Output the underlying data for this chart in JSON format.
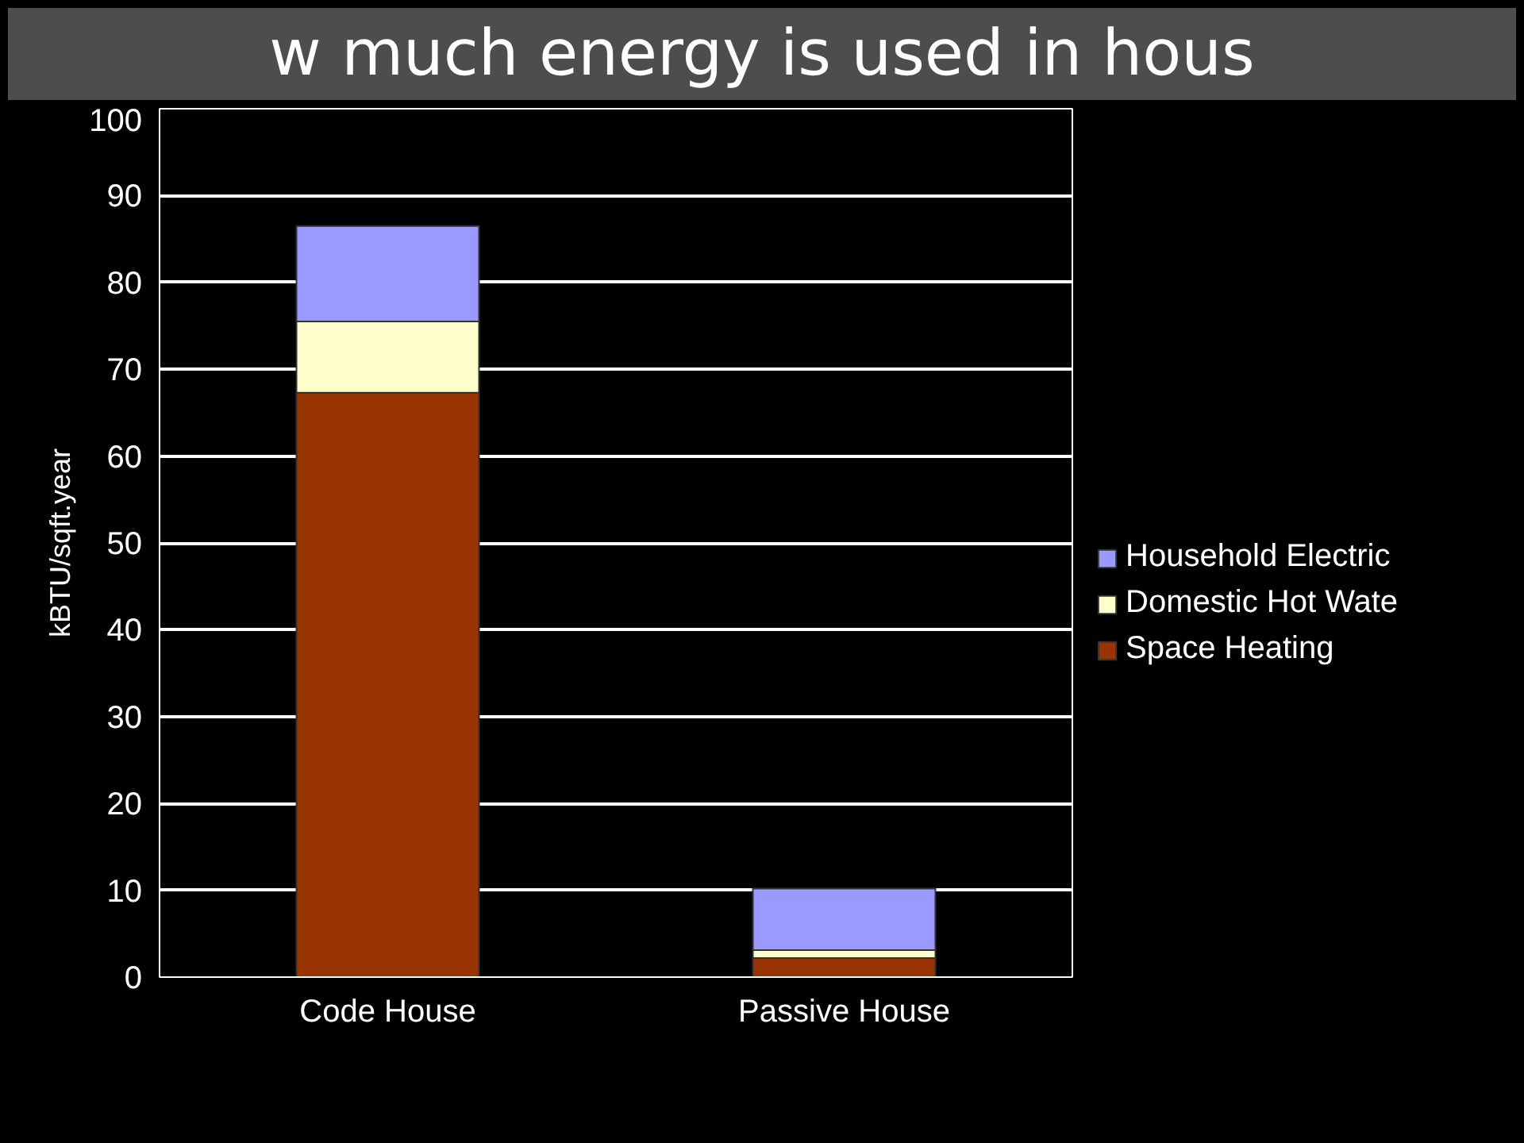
{
  "chart_data": {
    "type": "bar",
    "title": "w much energy is used in hous",
    "ylabel": "kBTU/sqft.year",
    "categories": [
      "Code House",
      "Passive House"
    ],
    "stacked": true,
    "series": [
      {
        "name": "Space Heating",
        "color": "#993300",
        "values": [
          67.3,
          2.2
        ]
      },
      {
        "name": "Domestic Hot Wate",
        "color": "#ffffcc",
        "values": [
          8.2,
          0.9
        ]
      },
      {
        "name": "Household Electric",
        "color": "#9999ff",
        "values": [
          11,
          7.1
        ]
      }
    ],
    "ylim": [
      0,
      100
    ],
    "yticks": [
      0,
      10,
      20,
      30,
      40,
      50,
      60,
      70,
      80,
      90,
      100
    ],
    "grid": "y",
    "legend": "right"
  }
}
